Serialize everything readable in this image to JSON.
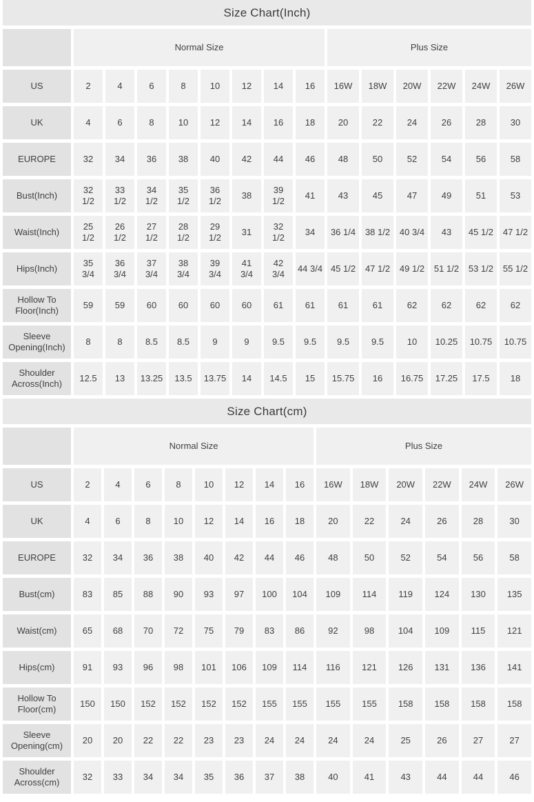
{
  "colors": {
    "page_background": "#ffffff",
    "title_bar_background": "#e9e9e9",
    "row_label_background": "#e2e2e2",
    "cell_background": "#f0f0f0",
    "text": "#3f3f3f"
  },
  "tables": [
    {
      "title": "Size Chart(Inch)",
      "unit": "Inch",
      "group_headers": [
        {
          "label": "",
          "span": 1
        },
        {
          "label": "Normal Size",
          "span": 8
        },
        {
          "label": "Plus Size",
          "span": 6
        }
      ],
      "rows": [
        {
          "label": "US",
          "values": [
            "2",
            "4",
            "6",
            "8",
            "10",
            "12",
            "14",
            "16",
            "16W",
            "18W",
            "20W",
            "22W",
            "24W",
            "26W"
          ]
        },
        {
          "label": "UK",
          "values": [
            "4",
            "6",
            "8",
            "10",
            "12",
            "14",
            "16",
            "18",
            "20",
            "22",
            "24",
            "26",
            "28",
            "30"
          ]
        },
        {
          "label": "EUROPE",
          "values": [
            "32",
            "34",
            "36",
            "38",
            "40",
            "42",
            "44",
            "46",
            "48",
            "50",
            "52",
            "54",
            "56",
            "58"
          ]
        },
        {
          "label": "Bust(Inch)",
          "values": [
            "32\n1/2",
            "33\n1/2",
            "34\n1/2",
            "35\n1/2",
            "36\n1/2",
            "38",
            "39\n1/2",
            "41",
            "43",
            "45",
            "47",
            "49",
            "51",
            "53"
          ]
        },
        {
          "label": "Waist(Inch)",
          "values": [
            "25\n1/2",
            "26\n1/2",
            "27\n1/2",
            "28\n1/2",
            "29\n1/2",
            "31",
            "32\n1/2",
            "34",
            "36 1/4",
            "38 1/2",
            "40 3/4",
            "43",
            "45 1/2",
            "47 1/2"
          ]
        },
        {
          "label": "Hips(Inch)",
          "values": [
            "35\n3/4",
            "36\n3/4",
            "37\n3/4",
            "38\n3/4",
            "39\n3/4",
            "41\n3/4",
            "42\n3/4",
            "44 3/4",
            "45 1/2",
            "47 1/2",
            "49 1/2",
            "51 1/2",
            "53 1/2",
            "55 1/2"
          ]
        },
        {
          "label": "Hollow To\nFloor(Inch)",
          "values": [
            "59",
            "59",
            "60",
            "60",
            "60",
            "60",
            "61",
            "61",
            "61",
            "61",
            "62",
            "62",
            "62",
            "62"
          ]
        },
        {
          "label": "Sleeve\nOpening(Inch)",
          "values": [
            "8",
            "8",
            "8.5",
            "8.5",
            "9",
            "9",
            "9.5",
            "9.5",
            "9.5",
            "9.5",
            "10",
            "10.25",
            "10.75",
            "10.75"
          ]
        },
        {
          "label": "Shoulder\nAcross(Inch)",
          "values": [
            "12.5",
            "13",
            "13.25",
            "13.5",
            "13.75",
            "14",
            "14.5",
            "15",
            "15.75",
            "16",
            "16.75",
            "17.25",
            "17.5",
            "18"
          ]
        }
      ]
    },
    {
      "title": "Size Chart(cm)",
      "unit": "cm",
      "group_headers": [
        {
          "label": "",
          "span": 1
        },
        {
          "label": "Normal Size",
          "span": 8
        },
        {
          "label": "Plus Size",
          "span": 6
        }
      ],
      "rows": [
        {
          "label": "US",
          "values": [
            "2",
            "4",
            "6",
            "8",
            "10",
            "12",
            "14",
            "16",
            "16W",
            "18W",
            "20W",
            "22W",
            "24W",
            "26W"
          ]
        },
        {
          "label": "UK",
          "values": [
            "4",
            "6",
            "8",
            "10",
            "12",
            "14",
            "16",
            "18",
            "20",
            "22",
            "24",
            "26",
            "28",
            "30"
          ]
        },
        {
          "label": "EUROPE",
          "values": [
            "32",
            "34",
            "36",
            "38",
            "40",
            "42",
            "44",
            "46",
            "48",
            "50",
            "52",
            "54",
            "56",
            "58"
          ]
        },
        {
          "label": "Bust(cm)",
          "values": [
            "83",
            "85",
            "88",
            "90",
            "93",
            "97",
            "100",
            "104",
            "109",
            "114",
            "119",
            "124",
            "130",
            "135"
          ]
        },
        {
          "label": "Waist(cm)",
          "values": [
            "65",
            "68",
            "70",
            "72",
            "75",
            "79",
            "83",
            "86",
            "92",
            "98",
            "104",
            "109",
            "115",
            "121"
          ]
        },
        {
          "label": "Hips(cm)",
          "values": [
            "91",
            "93",
            "96",
            "98",
            "101",
            "106",
            "109",
            "114",
            "116",
            "121",
            "126",
            "131",
            "136",
            "141"
          ]
        },
        {
          "label": "Hollow To\nFloor(cm)",
          "values": [
            "150",
            "150",
            "152",
            "152",
            "152",
            "152",
            "155",
            "155",
            "155",
            "155",
            "158",
            "158",
            "158",
            "158"
          ]
        },
        {
          "label": "Sleeve\nOpening(cm)",
          "values": [
            "20",
            "20",
            "22",
            "22",
            "23",
            "23",
            "24",
            "24",
            "24",
            "24",
            "25",
            "26",
            "27",
            "27"
          ]
        },
        {
          "label": "Shoulder\nAcross(cm)",
          "values": [
            "32",
            "33",
            "34",
            "34",
            "35",
            "36",
            "37",
            "38",
            "40",
            "41",
            "43",
            "44",
            "44",
            "46"
          ]
        }
      ]
    }
  ]
}
